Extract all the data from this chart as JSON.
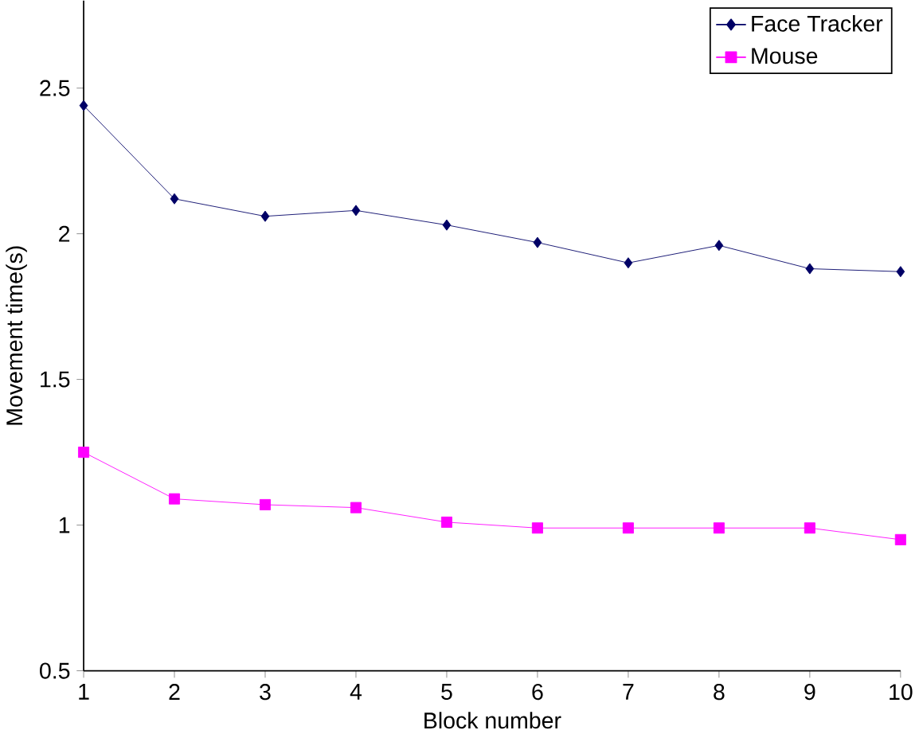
{
  "chart_data": {
    "type": "line",
    "xlabel": "Block number",
    "ylabel": "Movement time(s)",
    "x": [
      1,
      2,
      3,
      4,
      5,
      6,
      7,
      8,
      9,
      10
    ],
    "series": [
      {
        "name": "Face Tracker",
        "color": "#000066",
        "marker": "diamond",
        "values": [
          2.44,
          2.12,
          2.06,
          2.08,
          2.03,
          1.97,
          1.9,
          1.96,
          1.88,
          1.87
        ]
      },
      {
        "name": "Mouse",
        "color": "#ff00ff",
        "marker": "square",
        "values": [
          1.25,
          1.09,
          1.07,
          1.06,
          1.01,
          0.99,
          0.99,
          0.99,
          0.99,
          0.95
        ]
      }
    ],
    "xlim": [
      1,
      10
    ],
    "ylim": [
      0.5,
      2.8
    ],
    "xticks": [
      1,
      2,
      3,
      4,
      5,
      6,
      7,
      8,
      9,
      10
    ],
    "yticks": [
      0.5,
      1,
      1.5,
      2,
      2.5
    ],
    "grid": false,
    "legend": "top right"
  }
}
